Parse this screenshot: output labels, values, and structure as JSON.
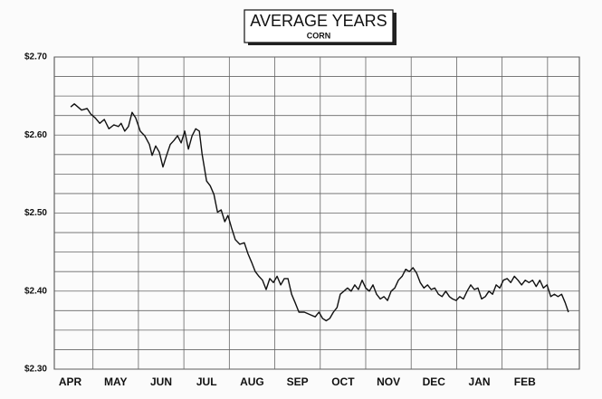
{
  "chart_data": {
    "type": "line",
    "title": "AVERAGE YEARS",
    "subtitle": "CORN",
    "series": [
      {
        "color": "#111111",
        "x": [
          0.51,
          0.59,
          0.75,
          0.87,
          0.95,
          1.05,
          1.15,
          1.25,
          1.35,
          1.46,
          1.56,
          1.62,
          1.7,
          1.78,
          1.86,
          1.94,
          2.04,
          2.14,
          2.24,
          2.3,
          2.38,
          2.46,
          2.54,
          2.62,
          2.7,
          2.78,
          2.86,
          2.94,
          3.02,
          3.1,
          3.18,
          3.26,
          3.34,
          3.4,
          3.5,
          3.58,
          3.66,
          3.74,
          3.82,
          3.9,
          3.97,
          4.05,
          4.13,
          4.23,
          4.33,
          4.41,
          4.49,
          4.57,
          4.65,
          4.73,
          4.81,
          4.89,
          4.97,
          5.05,
          5.13,
          5.21,
          5.29,
          5.37,
          5.45,
          5.53,
          5.65,
          5.77,
          5.89,
          5.97,
          6.05,
          6.13,
          6.21,
          6.29,
          6.37,
          6.44,
          6.52,
          6.6,
          6.68,
          6.76,
          6.84,
          6.92,
          7.0,
          7.08,
          7.16,
          7.24,
          7.32,
          7.4,
          7.48,
          7.56,
          7.64,
          7.72,
          7.8,
          7.88,
          7.96,
          8.04,
          8.12,
          8.2,
          8.28,
          8.36,
          8.44,
          8.52,
          8.6,
          8.68,
          8.76,
          8.84,
          8.91,
          8.99,
          9.07,
          9.15,
          9.23,
          9.31,
          9.39,
          9.47,
          9.55,
          9.63,
          9.71,
          9.79,
          9.87,
          9.95,
          10.03,
          10.11,
          10.19,
          10.27,
          10.35,
          10.43,
          10.51,
          10.59,
          10.67,
          10.75,
          10.83,
          10.91,
          10.99,
          11.07,
          11.15,
          11.23,
          11.31,
          11.39,
          11.46
        ],
        "values": [
          2.636,
          2.64,
          2.632,
          2.634,
          2.627,
          2.622,
          2.615,
          2.62,
          2.608,
          2.613,
          2.611,
          2.615,
          2.605,
          2.611,
          2.629,
          2.622,
          2.605,
          2.599,
          2.588,
          2.574,
          2.586,
          2.578,
          2.559,
          2.574,
          2.588,
          2.593,
          2.599,
          2.59,
          2.605,
          2.582,
          2.599,
          2.608,
          2.605,
          2.576,
          2.541,
          2.535,
          2.524,
          2.501,
          2.504,
          2.489,
          2.497,
          2.481,
          2.466,
          2.46,
          2.462,
          2.448,
          2.437,
          2.425,
          2.419,
          2.414,
          2.402,
          2.416,
          2.411,
          2.419,
          2.408,
          2.416,
          2.416,
          2.396,
          2.385,
          2.373,
          2.373,
          2.37,
          2.367,
          2.373,
          2.365,
          2.362,
          2.365,
          2.373,
          2.379,
          2.396,
          2.4,
          2.404,
          2.4,
          2.408,
          2.402,
          2.414,
          2.404,
          2.4,
          2.408,
          2.396,
          2.39,
          2.393,
          2.388,
          2.4,
          2.404,
          2.414,
          2.419,
          2.428,
          2.425,
          2.43,
          2.423,
          2.411,
          2.404,
          2.408,
          2.402,
          2.404,
          2.396,
          2.393,
          2.4,
          2.393,
          2.39,
          2.388,
          2.393,
          2.39,
          2.4,
          2.408,
          2.402,
          2.404,
          2.39,
          2.393,
          2.4,
          2.396,
          2.408,
          2.404,
          2.414,
          2.416,
          2.411,
          2.419,
          2.414,
          2.408,
          2.414,
          2.411,
          2.414,
          2.406,
          2.414,
          2.404,
          2.408,
          2.393,
          2.396,
          2.393,
          2.396,
          2.385,
          2.373
        ]
      }
    ],
    "xlim": [
      0.15,
      11.7
    ],
    "xticks": [
      {
        "value": 0.5,
        "label": "APR"
      },
      {
        "value": 1.5,
        "label": "MAY"
      },
      {
        "value": 2.5,
        "label": "JUN"
      },
      {
        "value": 3.5,
        "label": "JUL"
      },
      {
        "value": 4.5,
        "label": "AUG"
      },
      {
        "value": 5.5,
        "label": "SEP"
      },
      {
        "value": 6.5,
        "label": "OCT"
      },
      {
        "value": 7.5,
        "label": "NOV"
      },
      {
        "value": 8.5,
        "label": "DEC"
      },
      {
        "value": 9.5,
        "label": "JAN"
      },
      {
        "value": 10.5,
        "label": "FEB"
      }
    ],
    "xgrid": [
      1,
      2,
      3,
      4,
      5,
      6,
      7,
      8,
      9,
      10,
      11
    ],
    "ylim": [
      2.3,
      2.7
    ],
    "yticks": [
      {
        "value": 2.3,
        "label": "$2.30"
      },
      {
        "value": 2.4,
        "label": "$2.40"
      },
      {
        "value": 2.5,
        "label": "$2.50"
      },
      {
        "value": 2.6,
        "label": "$2.60"
      },
      {
        "value": 2.7,
        "label": "$2.70"
      }
    ],
    "ygrid": [
      2.325,
      2.35,
      2.375,
      2.425,
      2.45,
      2.475,
      2.525,
      2.55,
      2.575,
      2.625,
      2.65,
      2.675
    ],
    "grid": true
  }
}
